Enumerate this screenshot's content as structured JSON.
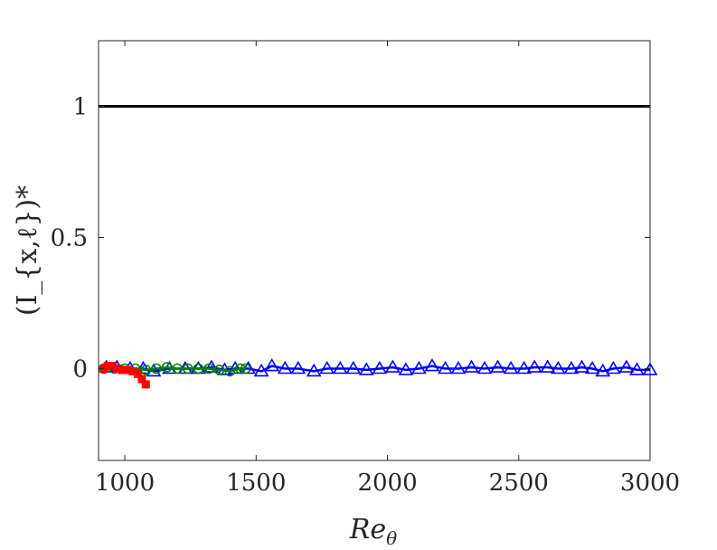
{
  "chart_data": {
    "type": "line",
    "title": "",
    "xlabel": "Re_θ",
    "ylabel": "(I_{x,ℓ})*",
    "xlim": [
      900,
      3000
    ],
    "ylim": [
      -0.35,
      1.25
    ],
    "xticks": [
      1000,
      1500,
      2000,
      2500,
      3000
    ],
    "yticks": [
      0,
      0.5,
      1
    ],
    "xtick_labels": [
      "1000",
      "1500",
      "2000",
      "2500",
      "3000"
    ],
    "ytick_labels": [
      "0",
      "0.5",
      "1"
    ],
    "grid": false,
    "legend": "none",
    "series": [
      {
        "color": "#000000",
        "marker": "none",
        "x": [
          900,
          3000
        ],
        "y": [
          1.0,
          1.0
        ]
      },
      {
        "color": "#0000ff",
        "marker": "triangle",
        "x": [
          930,
          970,
          1020,
          1070,
          1110,
          1170,
          1230,
          1280,
          1330,
          1380,
          1420,
          1470,
          1520,
          1560,
          1610,
          1660,
          1720,
          1770,
          1820,
          1870,
          1920,
          1970,
          2020,
          2070,
          2120,
          2170,
          2220,
          2270,
          2320,
          2370,
          2420,
          2470,
          2520,
          2560,
          2610,
          2650,
          2700,
          2740,
          2780,
          2820,
          2860,
          2910,
          2950,
          3000
        ],
        "y": [
          0.005,
          0.005,
          0.0,
          0.0,
          -0.01,
          0.0,
          0.0,
          0.0,
          0.005,
          -0.005,
          0.0,
          0.0,
          -0.01,
          0.01,
          0.0,
          0.0,
          -0.01,
          0.0,
          0.0,
          0.0,
          -0.005,
          0.0,
          0.005,
          -0.005,
          0.0,
          0.01,
          0.0,
          0.0,
          0.005,
          0.0,
          0.005,
          0.0,
          0.0,
          0.005,
          0.005,
          0.0,
          0.0,
          0.005,
          0.0,
          -0.01,
          0.0,
          0.005,
          -0.005,
          -0.005
        ]
      },
      {
        "color": "#008000",
        "marker": "circle",
        "x": [
          920,
          960,
          1000,
          1040,
          1080,
          1120,
          1160,
          1200,
          1240,
          1280,
          1320,
          1360,
          1400,
          1440,
          1460
        ],
        "y": [
          0.0,
          0.0,
          0.0,
          0.0,
          -0.005,
          0.0,
          0.005,
          0.0,
          0.0,
          0.0,
          0.0,
          -0.005,
          -0.01,
          0.0,
          0.0
        ]
      },
      {
        "color": "#ff0000",
        "marker": "square",
        "x": [
          920,
          935,
          950,
          970,
          990,
          1010,
          1030,
          1050,
          1065,
          1080
        ],
        "y": [
          0.0,
          0.01,
          0.01,
          0.0,
          -0.005,
          -0.005,
          -0.01,
          -0.02,
          -0.04,
          -0.06
        ]
      }
    ]
  }
}
